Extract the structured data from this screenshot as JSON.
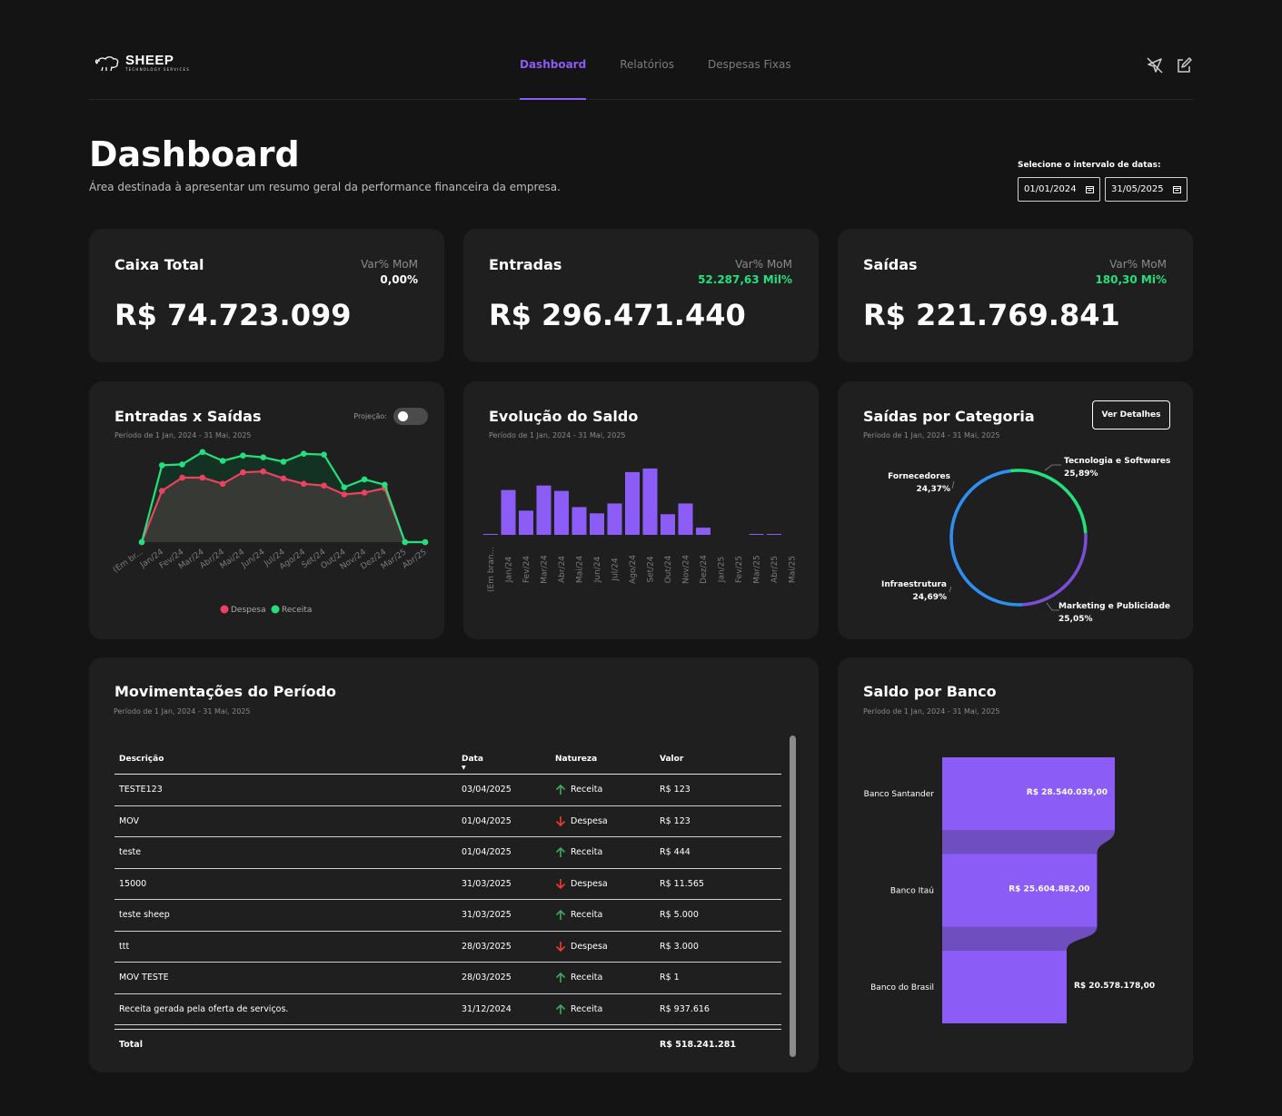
{
  "brand": {
    "name": "SHEEP",
    "subtitle": "TECHNOLOGY SERVICES"
  },
  "nav": [
    {
      "label": "Dashboard",
      "active": true
    },
    {
      "label": "Relatórios",
      "active": false
    },
    {
      "label": "Despesas Fixas",
      "active": false
    }
  ],
  "header_icons": [
    "send-off-icon",
    "edit-icon"
  ],
  "page": {
    "title": "Dashboard",
    "subtitle": "Área destinada à apresentar um resumo geral da performance financeira da empresa."
  },
  "date_range": {
    "label": "Selecione o intervalo de datas:",
    "start": "01/01/2024",
    "end": "31/05/2025"
  },
  "kpis": [
    {
      "title": "Caixa Total",
      "var_label": "Var% MoM",
      "var_value": "0,00%",
      "value": "R$ 74.723.099"
    },
    {
      "title": "Entradas",
      "var_label": "Var% MoM",
      "var_value": "52.287,63 Mil%",
      "value": "R$ 296.471.440"
    },
    {
      "title": "Saídas",
      "var_label": "Var% MoM",
      "var_value": "180,30 Mi%",
      "value": "R$ 221.769.841"
    }
  ],
  "period_text": "Período de 1 Jan, 2024 - 31 Mai, 2025",
  "colors": {
    "accent": "#8b5cf6",
    "receita": "#22e07b",
    "despesa": "#ef4060",
    "bar": "#8b5cf6"
  },
  "chart_data": [
    {
      "type": "line",
      "title": "Entradas x Saídas",
      "toggle_label": "Projeção:",
      "categories": [
        "(Em br...",
        "Jan/24",
        "Fev/24",
        "Mar/24",
        "Abr/24",
        "Mai/24",
        "Jun/24",
        "Jul/24",
        "Ago/24",
        "Set/24",
        "Out/24",
        "Nov/24",
        "Dez/24",
        "Mar/25",
        "Abr/25"
      ],
      "series": [
        {
          "name": "Despesa",
          "values": [
            0,
            58,
            73,
            73,
            66,
            79,
            80,
            72,
            66,
            64,
            54,
            56,
            61,
            0,
            0
          ]
        },
        {
          "name": "Receita",
          "values": [
            0,
            87,
            88,
            102,
            92,
            98,
            96,
            91,
            100,
            99,
            62,
            71,
            65,
            0,
            0
          ]
        }
      ],
      "ylim": [
        0,
        110
      ]
    },
    {
      "type": "bar",
      "title": "Evolução do Saldo",
      "categories": [
        "(Em bran...",
        "Jan/24",
        "Fev/24",
        "Mar/24",
        "Abr/24",
        "Mai/24",
        "Jun/24",
        "Jul/24",
        "Ago/24",
        "Set/24",
        "Out/24",
        "Nov/24",
        "Dez/24",
        "Jan/25",
        "Fev/25",
        "Mar/25",
        "Abr/25",
        "Mai/25"
      ],
      "values": [
        0.5,
        50,
        27,
        55,
        49,
        31,
        24,
        35,
        70,
        74,
        23,
        35,
        8,
        0,
        0,
        0.5,
        0.5,
        0
      ],
      "ylim": [
        0,
        80
      ]
    },
    {
      "type": "pie",
      "title": "Saídas por Categoria",
      "button": "Ver Detalhes",
      "labels": [
        "Tecnologia e Softwares",
        "Marketing e Publicidade",
        "Infraestrutura",
        "Fornecedores"
      ],
      "values": [
        25.89,
        25.05,
        24.69,
        24.37
      ],
      "display": [
        "25,89%",
        "25,05%",
        "24,69%",
        "24,37%"
      ],
      "colors": [
        "#22e07b",
        "#7c4dd6",
        "#2f8ff0",
        "#2f8ff0"
      ]
    },
    {
      "type": "bar",
      "title": "Saldo por Banco",
      "categories": [
        "Banco Santander",
        "Banco Itaú",
        "Banco do Brasil"
      ],
      "values": [
        28540039,
        25604882,
        20578178
      ],
      "display": [
        "R$ 28.540.039,00",
        "R$ 25.604.882,00",
        "R$ 20.578.178,00"
      ]
    }
  ],
  "table": {
    "title": "Movimentações do Período",
    "columns": [
      "Descrição",
      "Data",
      "Natureza",
      "Valor"
    ],
    "rows": [
      {
        "desc": "TESTE123",
        "date": "03/04/2025",
        "nature": "Receita",
        "value": "R$ 123"
      },
      {
        "desc": "MOV",
        "date": "01/04/2025",
        "nature": "Despesa",
        "value": "R$ 123"
      },
      {
        "desc": "teste",
        "date": "01/04/2025",
        "nature": "Receita",
        "value": "R$ 444"
      },
      {
        "desc": "15000",
        "date": "31/03/2025",
        "nature": "Despesa",
        "value": "R$ 11.565"
      },
      {
        "desc": "teste sheep",
        "date": "31/03/2025",
        "nature": "Receita",
        "value": "R$ 5.000"
      },
      {
        "desc": "ttt",
        "date": "28/03/2025",
        "nature": "Despesa",
        "value": "R$ 3.000"
      },
      {
        "desc": "MOV TESTE",
        "date": "28/03/2025",
        "nature": "Receita",
        "value": "R$ 1"
      },
      {
        "desc": "Receita gerada pela oferta de serviços.",
        "date": "31/12/2024",
        "nature": "Receita",
        "value": "R$ 937.616"
      }
    ],
    "total_label": "Total",
    "total_value": "R$ 518.241.281"
  }
}
